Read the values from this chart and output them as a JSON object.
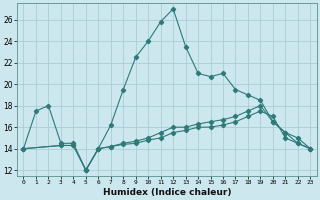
{
  "title": "",
  "xlabel": "Humidex (Indice chaleur)",
  "bg_color": "#cce8ee",
  "grid_color": "#aacdd6",
  "line_color": "#2d7a78",
  "xlim": [
    -0.5,
    23.5
  ],
  "ylim": [
    11.5,
    27.5
  ],
  "xticks": [
    0,
    1,
    2,
    3,
    4,
    5,
    6,
    7,
    8,
    9,
    10,
    11,
    12,
    13,
    14,
    15,
    16,
    17,
    18,
    19,
    20,
    21,
    22,
    23
  ],
  "yticks": [
    12,
    14,
    16,
    18,
    20,
    22,
    24,
    26
  ],
  "curve1_x": [
    0,
    1,
    2,
    3,
    4,
    5,
    6,
    7,
    8,
    9,
    10,
    11,
    12,
    13,
    14,
    15,
    16,
    17,
    18,
    19,
    20,
    21,
    22,
    23
  ],
  "curve1_y": [
    14,
    17.5,
    18.0,
    14.5,
    14.5,
    12.0,
    14.0,
    16.2,
    19.5,
    22.5,
    24.0,
    25.8,
    27.0,
    23.5,
    21.0,
    20.7,
    21.0,
    19.5,
    19.0,
    18.5,
    16.5,
    15.5,
    14.5,
    14.0
  ],
  "curve2_x": [
    0,
    3,
    4,
    5,
    6,
    7,
    8,
    9,
    10,
    11,
    12,
    13,
    14,
    15,
    16,
    17,
    18,
    19,
    20,
    21,
    22,
    23
  ],
  "curve2_y": [
    14.0,
    14.3,
    14.3,
    12.0,
    14.0,
    14.2,
    14.5,
    14.7,
    15.0,
    15.5,
    16.0,
    16.0,
    16.3,
    16.5,
    16.7,
    17.0,
    17.5,
    18.0,
    16.5,
    15.5,
    15.0,
    14.0
  ],
  "curve3_x": [
    0,
    3,
    4,
    5,
    6,
    7,
    8,
    9,
    10,
    11,
    12,
    13,
    14,
    15,
    16,
    17,
    18,
    19,
    20,
    21,
    22,
    23
  ],
  "curve3_y": [
    14.0,
    14.3,
    14.3,
    12.0,
    14.0,
    14.2,
    14.4,
    14.5,
    14.8,
    15.0,
    15.5,
    15.7,
    16.0,
    16.0,
    16.2,
    16.5,
    17.0,
    17.5,
    17.0,
    15.0,
    14.5,
    14.0
  ]
}
